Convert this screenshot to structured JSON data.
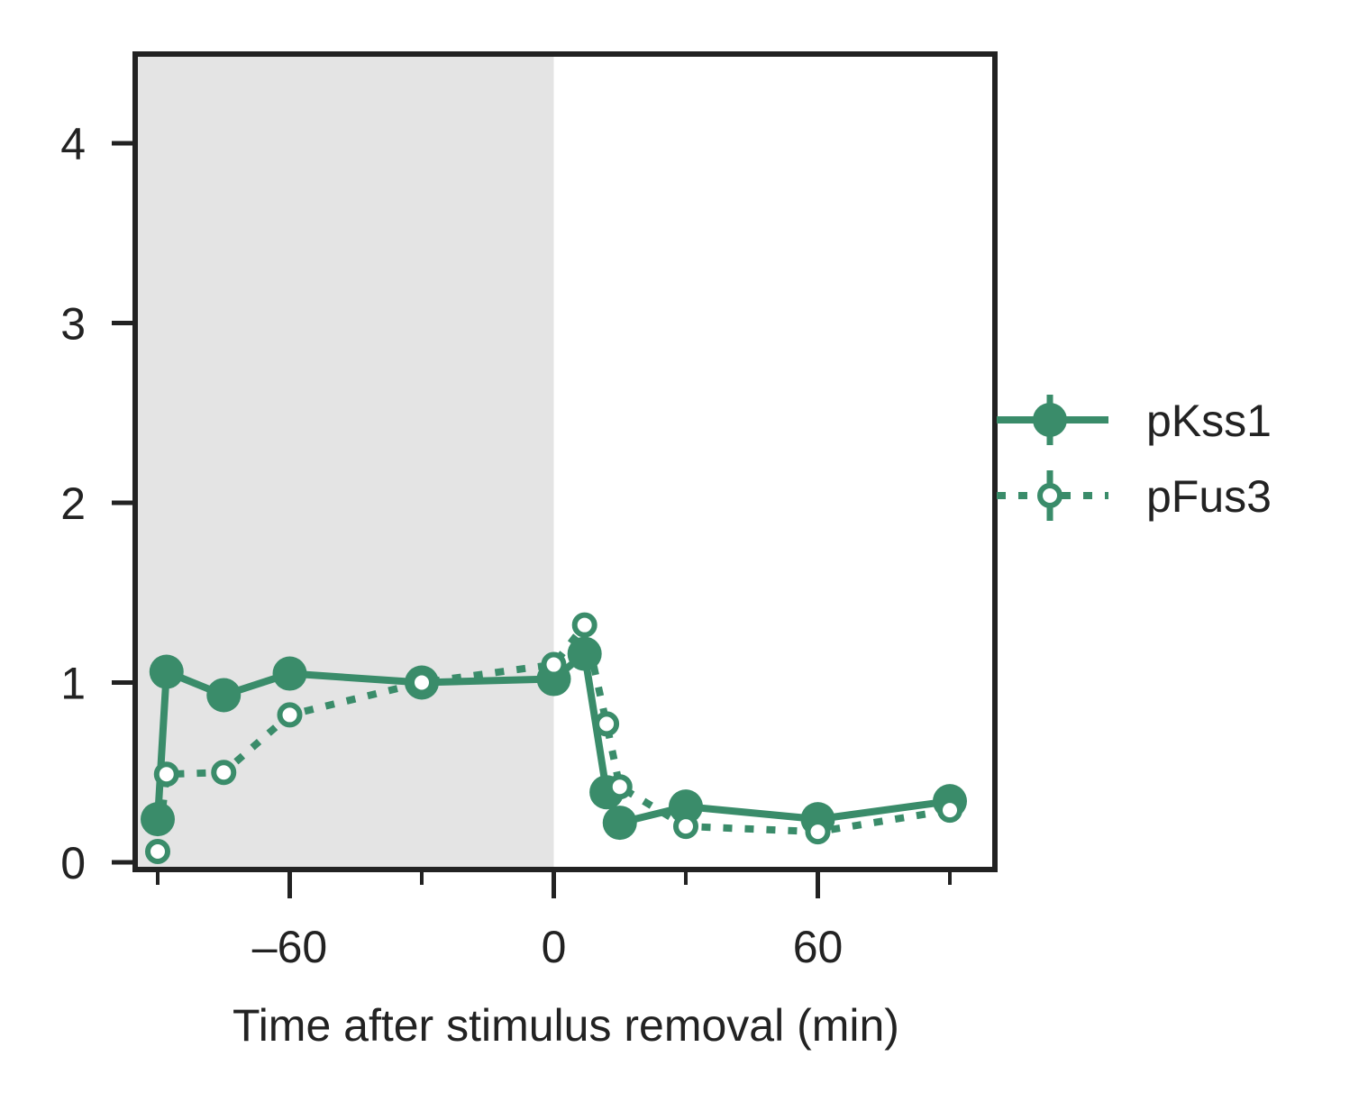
{
  "chart_data": {
    "type": "line",
    "title": "",
    "xlabel": "Time after stimulus removal (min)",
    "ylabel": "",
    "xlim": [
      -90,
      100
    ],
    "ylim": [
      0,
      4.5
    ],
    "xticks_major": [
      -60,
      0,
      60
    ],
    "xtick_labels": [
      "–60",
      "0",
      "60"
    ],
    "xticks_minor": [
      -90,
      -30,
      30,
      90
    ],
    "yticks": [
      0,
      1,
      2,
      3,
      4
    ],
    "ytick_labels": [
      "0",
      "1",
      "2",
      "3",
      "4"
    ],
    "shaded_region": {
      "x_from": -90,
      "x_to": 0,
      "color": "#e4e4e4"
    },
    "grid": false,
    "legend_placement": "outside-right",
    "colors": {
      "series": "#3a8c6a",
      "axis": "#222222"
    },
    "series": [
      {
        "name": "pKss1",
        "style": "solid",
        "marker": "filled-circle",
        "x": [
          -90,
          -88,
          -75,
          -60,
          -30,
          0,
          7,
          12,
          15,
          30,
          60,
          90
        ],
        "y": [
          0.24,
          1.06,
          0.93,
          1.05,
          1.0,
          1.02,
          1.16,
          0.39,
          0.22,
          0.31,
          0.24,
          0.34
        ]
      },
      {
        "name": "pFus3",
        "style": "dotted",
        "marker": "open-circle",
        "x": [
          -90,
          -88,
          -75,
          -60,
          -30,
          0,
          7,
          12,
          15,
          30,
          60,
          90
        ],
        "y": [
          0.06,
          0.49,
          0.5,
          0.82,
          1.0,
          1.1,
          1.32,
          0.77,
          0.42,
          0.2,
          0.17,
          0.29
        ]
      }
    ]
  }
}
